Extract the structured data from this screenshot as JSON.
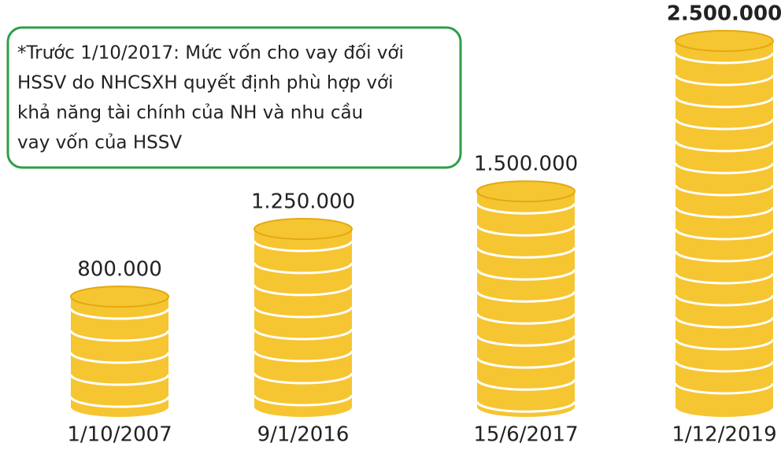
{
  "chart_data": {
    "type": "bar",
    "annotation": [
      "*Trước 1/10/2017: Mức vốn cho vay đối với",
      "HSSV do NHCSXH quyết định phù hợp với",
      "khả năng tài chính của NH và nhu cầu",
      "vay vốn của HSSV"
    ],
    "categories": [
      "1/10/2007",
      "9/1/2016",
      "15/6/2017",
      "1/12/2019"
    ],
    "values": [
      800000,
      1250000,
      1500000,
      2500000
    ],
    "value_labels": [
      "800.000",
      "1.250.000",
      "1.500.000",
      "2.500.000"
    ],
    "color": "#f6c532"
  }
}
